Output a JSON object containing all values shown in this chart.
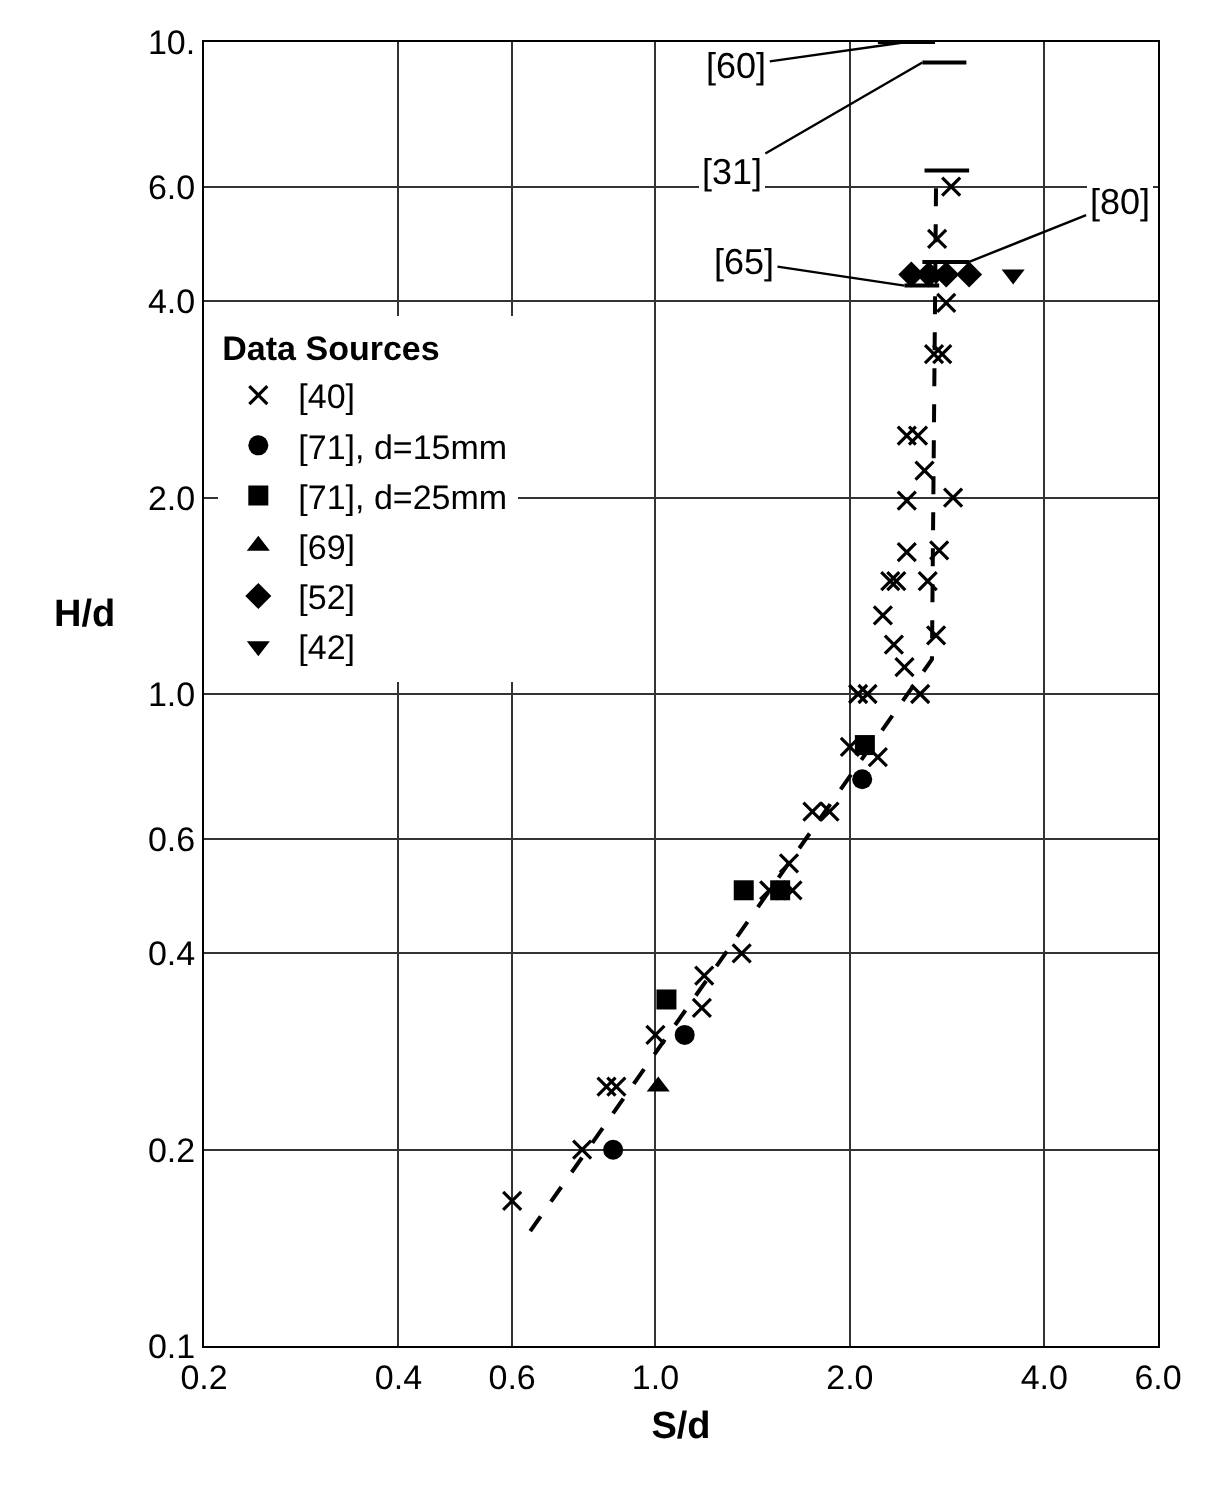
{
  "chart_data": {
    "type": "scatter",
    "xlabel": "S/d",
    "ylabel": "H/d",
    "log": "xy",
    "grid": true,
    "legend": "top left",
    "legend_title": "Data Sources",
    "xlim": [
      0.2,
      6.0
    ],
    "ylim": [
      0.1,
      10.0
    ],
    "xticks": [
      0.2,
      0.4,
      0.6,
      {
        "value": 1.0,
        "label": "1.0"
      },
      {
        "value": 2.0,
        "label": "2.0"
      },
      {
        "value": 4.0,
        "label": "4.0"
      },
      {
        "value": 6.0,
        "label": "6.0"
      }
    ],
    "yticks": [
      0.1,
      0.2,
      0.4,
      0.6,
      {
        "value": 1.0,
        "label": "1.0"
      },
      {
        "value": 2.0,
        "label": "2.0"
      },
      {
        "value": 4.0,
        "label": "4.0"
      },
      {
        "value": 6.0,
        "label": "6.0"
      },
      {
        "value": 10.0,
        "label": "10."
      }
    ],
    "series": [
      {
        "name": "[40]",
        "color": "#000000",
        "marker": "cross",
        "x": [
          0.6,
          0.77,
          0.84,
          0.87,
          1.0,
          1.18,
          1.19,
          1.36,
          1.5,
          1.63,
          1.61,
          1.75,
          1.86,
          2.0,
          2.21,
          2.06,
          2.13,
          2.57,
          2.43,
          2.34,
          2.72,
          2.25,
          2.31,
          2.36,
          2.64,
          2.45,
          2.75,
          2.45,
          2.89,
          2.61,
          2.45,
          2.55,
          2.7,
          2.78,
          2.82,
          2.73,
          2.87
        ],
        "values": [
          0.167,
          0.2,
          0.25,
          0.25,
          0.3,
          0.33,
          0.37,
          0.4,
          0.5,
          0.5,
          0.55,
          0.66,
          0.66,
          0.83,
          0.8,
          1.0,
          1.0,
          1.0,
          1.1,
          1.19,
          1.23,
          1.32,
          1.49,
          1.49,
          1.49,
          1.65,
          1.66,
          1.98,
          2.0,
          2.2,
          2.49,
          2.49,
          3.32,
          3.32,
          3.98,
          4.99,
          6.0
        ]
      },
      {
        "name": "[71], d=15mm",
        "color": "#000000",
        "marker": "circle",
        "x": [
          0.86,
          1.11,
          2.09
        ],
        "values": [
          0.2,
          0.3,
          0.74
        ]
      },
      {
        "name": "[71], d=25mm",
        "color": "#000000",
        "marker": "square",
        "x": [
          1.04,
          1.37,
          1.56,
          2.11
        ],
        "values": [
          0.34,
          0.5,
          0.5,
          0.835
        ]
      },
      {
        "name": "[69]",
        "color": "#000000",
        "marker": "triangle",
        "x": [
          1.01
        ],
        "values": [
          0.25
        ]
      },
      {
        "name": "[52]",
        "color": "#000000",
        "marker": "diamond",
        "x": [
          2.49,
          2.65,
          2.82,
          3.06
        ],
        "values": [
          4.4,
          4.4,
          4.4,
          4.4
        ]
      },
      {
        "name": "[42]",
        "color": "#000000",
        "marker": "triangle-down",
        "x": [
          2.72,
          3.58
        ],
        "values": [
          4.4,
          4.4
        ]
      },
      {
        "type": "line",
        "color": "#000000",
        "marker": "none",
        "x": [
          2.21,
          2.71
        ],
        "values": [
          10.0,
          10.0
        ]
      },
      {
        "type": "line",
        "color": "#000000",
        "marker": "none",
        "x": [
          2.59,
          3.03
        ],
        "values": [
          9.3,
          9.3
        ]
      },
      {
        "type": "line",
        "color": "#000000",
        "marker": "none",
        "x": [
          2.61,
          3.06
        ],
        "values": [
          6.35,
          6.35
        ]
      },
      {
        "type": "line",
        "color": "#000000",
        "marker": "none",
        "x": [
          2.59,
          3.06
        ],
        "values": [
          4.6,
          4.6
        ]
      },
      {
        "type": "line",
        "color": "#000000",
        "marker": "none",
        "x": [
          2.43,
          2.75
        ],
        "values": [
          4.23,
          4.23
        ]
      },
      {
        "type": "line",
        "color": "#000000",
        "marker": "none",
        "line_style": "dashed",
        "x": [
          0.64,
          2.68,
          2.72
        ],
        "values": [
          0.15,
          1.13,
          6.17
        ]
      }
    ],
    "annotations": [
      {
        "text": "[60]",
        "x": 2.45,
        "y": 10.0
      },
      {
        "text": "[31]",
        "x": 2.59,
        "y": 9.3
      },
      {
        "text": "[80]",
        "x": 3.06,
        "y": 4.6
      },
      {
        "text": "[65]",
        "x": 2.43,
        "y": 4.23
      }
    ]
  }
}
